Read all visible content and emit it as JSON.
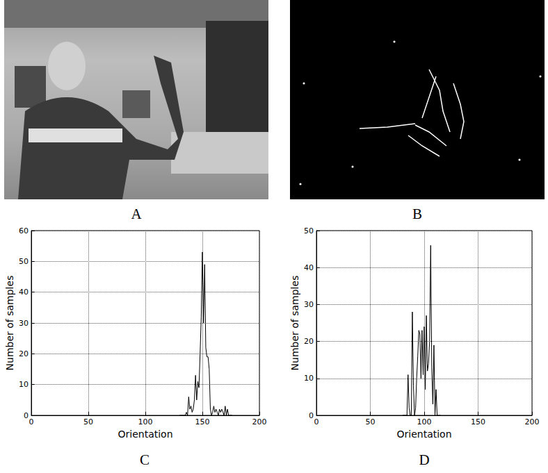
{
  "panel_labels": [
    "A",
    "B",
    "C",
    "D"
  ],
  "chart_data": [
    {
      "type": "line",
      "xlabel": "Orientation",
      "ylabel": "Number of samples",
      "x": [
        130,
        131,
        132,
        133,
        134,
        135,
        136,
        137,
        138,
        139,
        140,
        141,
        142,
        143,
        144,
        145,
        146,
        147,
        148,
        149,
        150,
        151,
        152,
        153,
        154,
        155,
        156,
        157,
        158,
        159,
        160,
        161,
        162,
        163,
        164,
        165,
        166,
        167,
        168,
        169,
        170,
        171,
        172,
        173,
        174,
        175,
        176
      ],
      "values": [
        0,
        0,
        0,
        0,
        0,
        0,
        1,
        0,
        6,
        2,
        3,
        1,
        2,
        5,
        13,
        5,
        11,
        9,
        20,
        32,
        53,
        30,
        49,
        22,
        19,
        19,
        15,
        2,
        0,
        1,
        3,
        1,
        2,
        1,
        0,
        2,
        1,
        2,
        1,
        0,
        3,
        0,
        2,
        0,
        0,
        0,
        0
      ],
      "color": "#000000",
      "xlim": [
        0,
        200
      ],
      "xticks": [
        0,
        50,
        100,
        150,
        200
      ],
      "ylim": [
        0,
        60
      ],
      "yticks": [
        0,
        10,
        20,
        30,
        40,
        50,
        60
      ],
      "grid": true
    },
    {
      "type": "line",
      "xlabel": "Orientation",
      "ylabel": "Number of samples",
      "x": [
        80,
        81,
        82,
        83,
        84,
        85,
        86,
        87,
        88,
        89,
        90,
        91,
        92,
        93,
        94,
        95,
        96,
        97,
        98,
        99,
        100,
        101,
        102,
        103,
        104,
        105,
        106,
        107,
        108,
        109,
        110,
        111,
        112,
        113,
        114,
        115
      ],
      "values": [
        0,
        0,
        0,
        0,
        0,
        11,
        2,
        0,
        0,
        28,
        8,
        0,
        2,
        10,
        16,
        23,
        22,
        10,
        23,
        11,
        24,
        7,
        27,
        12,
        14,
        20,
        46,
        13,
        3,
        19,
        0,
        7,
        0,
        0,
        0,
        0
      ],
      "color": "#000000",
      "xlim": [
        0,
        200
      ],
      "xticks": [
        0,
        50,
        100,
        150,
        200
      ],
      "ylim": [
        0,
        50
      ],
      "yticks": [
        0,
        10,
        20,
        30,
        40,
        50
      ],
      "grid": true
    }
  ]
}
